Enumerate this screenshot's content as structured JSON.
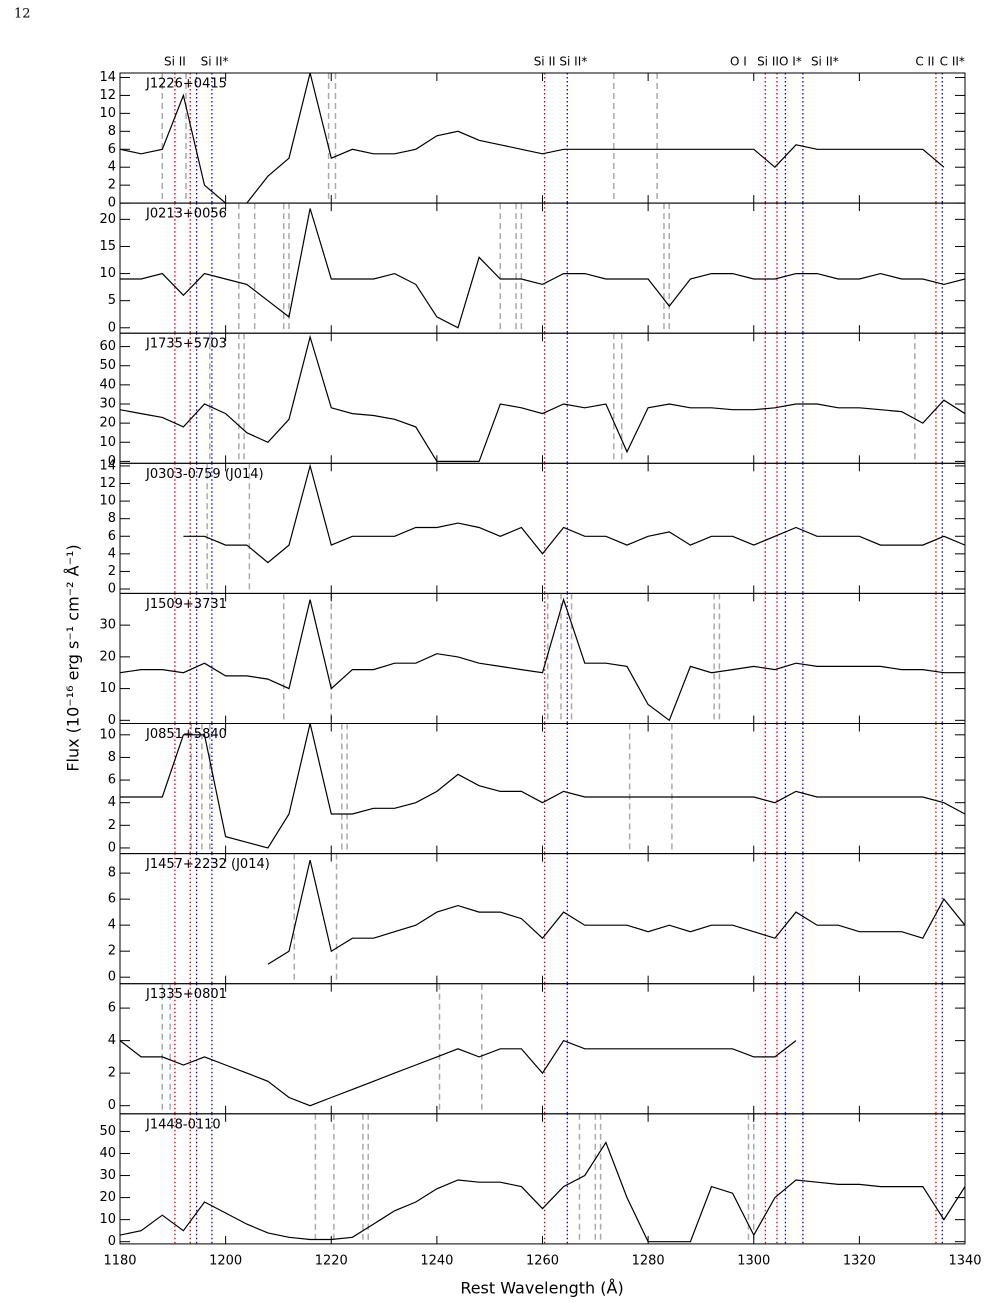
{
  "page_number": "12",
  "axes": {
    "xlim": [
      1180,
      1340
    ],
    "xticks": [
      1180,
      1200,
      1220,
      1240,
      1260,
      1280,
      1300,
      1320,
      1340
    ],
    "xlabel": "Rest Wavelength (Å)",
    "ylabel": "Flux (10⁻¹⁶ erg s⁻¹ cm⁻² Å⁻¹)"
  },
  "transitions": [
    {
      "label": "Si II",
      "wavelength": 1190.4,
      "color": "#e00000"
    },
    {
      "wavelength": 1193.3,
      "color": "#e00000"
    },
    {
      "label": "Si II*",
      "wavelength": 1194.5,
      "color": "#0000e0"
    },
    {
      "wavelength": 1197.4,
      "color": "#0000e0"
    },
    {
      "label": "Si II",
      "wavelength": 1260.4,
      "color": "#e00000"
    },
    {
      "label": "Si II*",
      "wavelength": 1264.7,
      "color": "#0000e0"
    },
    {
      "label": "O I",
      "wavelength": 1302.2,
      "color": "#e00000"
    },
    {
      "label": "Si II",
      "wavelength": 1304.4,
      "color": "#e00000"
    },
    {
      "label": "O I*",
      "wavelength": 1306.0,
      "color": "#0000e0"
    },
    {
      "label": "Si II*",
      "wavelength": 1309.3,
      "color": "#0000e0"
    },
    {
      "label": "C II",
      "wavelength": 1334.5,
      "color": "#e00000"
    },
    {
      "label": "C II*",
      "wavelength": 1335.7,
      "color": "#0000e0"
    }
  ],
  "chart_data": [
    {
      "type": "line",
      "title": "J1226+0415",
      "color": "#000000",
      "ylim": [
        0,
        14.5
      ],
      "yticks": [
        0,
        2,
        4,
        6,
        8,
        10,
        12,
        14
      ],
      "dashed": [
        1188,
        1192.5,
        1219.5,
        1220.8,
        1273.5,
        1281.7
      ],
      "x": [
        1180,
        1184,
        1188,
        1192,
        1196,
        1200,
        1204,
        1208,
        1212,
        1216,
        1220,
        1224,
        1228,
        1232,
        1236,
        1240,
        1244,
        1248,
        1252,
        1256,
        1260,
        1264,
        1268,
        1272,
        1276,
        1280,
        1284,
        1288,
        1292,
        1296,
        1300,
        1304,
        1308,
        1312,
        1316,
        1320,
        1324,
        1328,
        1332,
        1336,
        1340
      ],
      "values": [
        6,
        5.5,
        6,
        12,
        2,
        0,
        0,
        3,
        5,
        14.5,
        5,
        6,
        5.5,
        5.5,
        6,
        7.5,
        8,
        7,
        6.5,
        6,
        5.5,
        6,
        6,
        6,
        6,
        6,
        6,
        6,
        6,
        6,
        6,
        4,
        6.5,
        6,
        6,
        6,
        6,
        6,
        6,
        4,
        null
      ]
    },
    {
      "type": "line",
      "title": "J0213+0056",
      "color": "#000000",
      "ylim": [
        -1,
        23
      ],
      "yticks": [
        0,
        5,
        10,
        15,
        20
      ],
      "dashed": [
        1202.5,
        1205.5,
        1211,
        1212,
        1252,
        1255,
        1256,
        1283,
        1284
      ],
      "x": [
        1180,
        1184,
        1188,
        1192,
        1196,
        1200,
        1204,
        1208,
        1212,
        1216,
        1220,
        1224,
        1228,
        1232,
        1236,
        1240,
        1244,
        1248,
        1252,
        1256,
        1260,
        1264,
        1268,
        1272,
        1276,
        1280,
        1284,
        1288,
        1292,
        1296,
        1300,
        1304,
        1308,
        1312,
        1316,
        1320,
        1324,
        1328,
        1332,
        1336,
        1340
      ],
      "values": [
        9,
        9,
        10,
        6,
        10,
        9,
        8,
        5,
        2,
        22,
        9,
        9,
        9,
        10,
        8,
        2,
        0,
        13,
        9,
        9,
        8,
        10,
        10,
        9,
        9,
        9,
        4,
        9,
        10,
        10,
        9,
        9,
        10,
        10,
        9,
        9,
        10,
        9,
        9,
        8,
        9
      ]
    },
    {
      "type": "line",
      "title": "J1735+5703",
      "color": "#000000",
      "ylim": [
        -1,
        67
      ],
      "yticks": [
        0,
        10,
        20,
        30,
        40,
        50,
        60
      ],
      "dashed": [
        1197,
        1202.5,
        1203.5,
        1273.5,
        1275,
        1330.5
      ],
      "x": [
        1180,
        1184,
        1188,
        1192,
        1196,
        1200,
        1204,
        1208,
        1212,
        1216,
        1220,
        1224,
        1228,
        1232,
        1236,
        1240,
        1244,
        1248,
        1252,
        1256,
        1260,
        1264,
        1268,
        1272,
        1276,
        1280,
        1284,
        1288,
        1292,
        1296,
        1300,
        1304,
        1308,
        1312,
        1316,
        1320,
        1324,
        1328,
        1332,
        1336,
        1340
      ],
      "values": [
        27,
        25,
        23,
        18,
        30,
        25,
        15,
        10,
        22,
        65,
        28,
        25,
        24,
        22,
        18,
        0,
        0,
        0,
        30,
        28,
        25,
        30,
        28,
        30,
        5,
        28,
        30,
        28,
        28,
        27,
        27,
        28,
        30,
        30,
        28,
        28,
        27,
        26,
        20,
        32,
        25
      ]
    },
    {
      "type": "line",
      "title": "J0303-0759 (J014)",
      "color": "#000000",
      "ylim": [
        -0.5,
        14.3
      ],
      "yticks": [
        0,
        2,
        4,
        6,
        8,
        10,
        12,
        14
      ],
      "dashed": [
        1196.5,
        1204.5
      ],
      "x": [
        1180,
        1184,
        1188,
        1192,
        1196,
        1200,
        1204,
        1208,
        1212,
        1216,
        1220,
        1224,
        1228,
        1232,
        1236,
        1240,
        1244,
        1248,
        1252,
        1256,
        1260,
        1264,
        1268,
        1272,
        1276,
        1280,
        1284,
        1288,
        1292,
        1296,
        1300,
        1304,
        1308,
        1312,
        1316,
        1320,
        1324,
        1328,
        1332,
        1336,
        1340
      ],
      "values": [
        null,
        null,
        null,
        6,
        6,
        5,
        5,
        3,
        5,
        14,
        5,
        6,
        6,
        6,
        7,
        7,
        7.5,
        7,
        6,
        7,
        4,
        7,
        6,
        6,
        5,
        6,
        6.5,
        5,
        6,
        6,
        5,
        6,
        7,
        6,
        6,
        6,
        5,
        5,
        5,
        6,
        5
      ]
    },
    {
      "type": "line",
      "title": "J1509+3731",
      "color": "#000000",
      "ylim": [
        -1,
        40
      ],
      "yticks": [
        0,
        10,
        20,
        30
      ],
      "dashed": [
        1211,
        1220,
        1261,
        1263.5,
        1265.5,
        1292.5,
        1293.5
      ],
      "x": [
        1180,
        1184,
        1188,
        1192,
        1196,
        1200,
        1204,
        1208,
        1212,
        1216,
        1220,
        1224,
        1228,
        1232,
        1236,
        1240,
        1244,
        1248,
        1252,
        1256,
        1260,
        1264,
        1268,
        1272,
        1276,
        1280,
        1284,
        1288,
        1292,
        1296,
        1300,
        1304,
        1308,
        1312,
        1316,
        1320,
        1324,
        1328,
        1332,
        1336,
        1340
      ],
      "values": [
        15,
        16,
        16,
        15,
        18,
        14,
        14,
        13,
        10,
        38,
        10,
        16,
        16,
        18,
        18,
        21,
        20,
        18,
        17,
        16,
        15,
        38,
        18,
        18,
        17,
        5,
        0,
        17,
        15,
        16,
        17,
        16,
        18,
        17,
        17,
        17,
        17,
        16,
        16,
        15,
        15
      ]
    },
    {
      "type": "line",
      "title": "J0851+5840",
      "color": "#000000",
      "ylim": [
        -0.5,
        11
      ],
      "yticks": [
        0,
        2,
        4,
        6,
        8,
        10
      ],
      "dashed": [
        1193.5,
        1195.5,
        1197,
        1222,
        1223,
        1276.5,
        1284.5
      ],
      "x": [
        1180,
        1184,
        1188,
        1192,
        1196,
        1200,
        1204,
        1208,
        1212,
        1216,
        1220,
        1224,
        1228,
        1232,
        1236,
        1240,
        1244,
        1248,
        1252,
        1256,
        1260,
        1264,
        1268,
        1272,
        1276,
        1280,
        1284,
        1288,
        1292,
        1296,
        1300,
        1304,
        1308,
        1312,
        1316,
        1320,
        1324,
        1328,
        1332,
        1336,
        1340
      ],
      "values": [
        4.5,
        4.5,
        4.5,
        10,
        10,
        1,
        0.5,
        0,
        3,
        11,
        3,
        3,
        3.5,
        3.5,
        4,
        5,
        6.5,
        5.5,
        5,
        5,
        4,
        5,
        4.5,
        4.5,
        4.5,
        4.5,
        4.5,
        4.5,
        4.5,
        4.5,
        4.5,
        4,
        5,
        4.5,
        4.5,
        4.5,
        4.5,
        4.5,
        4.5,
        4,
        3
      ]
    },
    {
      "type": "line",
      "title": "J1457+2232 (J014)",
      "color": "#000000",
      "ylim": [
        -0.5,
        9.5
      ],
      "yticks": [
        0,
        2,
        4,
        6,
        8
      ],
      "dashed": [
        1213,
        1221
      ],
      "x": [
        1180,
        1184,
        1188,
        1192,
        1196,
        1200,
        1204,
        1208,
        1212,
        1216,
        1220,
        1224,
        1228,
        1232,
        1236,
        1240,
        1244,
        1248,
        1252,
        1256,
        1260,
        1264,
        1268,
        1272,
        1276,
        1280,
        1284,
        1288,
        1292,
        1296,
        1300,
        1304,
        1308,
        1312,
        1316,
        1320,
        1324,
        1328,
        1332,
        1336,
        1340
      ],
      "values": [
        null,
        null,
        null,
        null,
        null,
        null,
        null,
        1,
        2,
        9,
        2,
        3,
        3,
        3.5,
        4,
        5,
        5.5,
        5,
        5,
        4.5,
        3,
        5,
        4,
        4,
        4,
        3.5,
        4,
        3.5,
        4,
        4,
        3.5,
        3,
        5,
        4,
        4,
        3.5,
        3.5,
        3.5,
        3,
        6,
        4
      ]
    },
    {
      "type": "line",
      "title": "J1335+0801",
      "color": "#000000",
      "ylim": [
        -0.5,
        7.5
      ],
      "yticks": [
        0,
        2,
        4,
        6
      ],
      "dashed": [
        1188,
        1189.5,
        1240.5,
        1248.5
      ],
      "x": [
        1180,
        1184,
        1188,
        1192,
        1196,
        1200,
        1204,
        1208,
        1212,
        1216,
        1220,
        1224,
        1228,
        1232,
        1236,
        1240,
        1244,
        1248,
        1252,
        1256,
        1260,
        1264,
        1268,
        1272,
        1276,
        1280,
        1284,
        1288,
        1292,
        1296,
        1300,
        1304,
        1308,
        1312,
        1316,
        1320,
        1324,
        1328,
        1332,
        1336,
        1340
      ],
      "values": [
        4,
        3,
        3,
        2.5,
        3,
        2.5,
        2,
        1.5,
        0.5,
        0,
        0.5,
        1,
        1.5,
        2,
        2.5,
        3,
        3.5,
        3,
        3.5,
        3.5,
        2,
        4,
        3.5,
        3.5,
        3.5,
        3.5,
        3.5,
        3.5,
        3.5,
        3.5,
        3,
        3,
        4,
        null,
        null,
        null,
        null,
        null,
        null,
        null,
        null
      ]
    },
    {
      "type": "line",
      "title": "J1448-0110",
      "color": "#000000",
      "ylim": [
        -1,
        58
      ],
      "yticks": [
        0,
        10,
        20,
        30,
        40,
        50
      ],
      "dashed": [
        1217,
        1220.5,
        1226,
        1227,
        1267,
        1270,
        1271,
        1299,
        1300
      ],
      "x": [
        1180,
        1184,
        1188,
        1192,
        1196,
        1200,
        1204,
        1208,
        1212,
        1216,
        1220,
        1224,
        1228,
        1232,
        1236,
        1240,
        1244,
        1248,
        1252,
        1256,
        1260,
        1264,
        1268,
        1272,
        1276,
        1280,
        1284,
        1288,
        1292,
        1296,
        1300,
        1304,
        1308,
        1312,
        1316,
        1320,
        1324,
        1328,
        1332,
        1336,
        1340
      ],
      "values": [
        3,
        5,
        12,
        5,
        18,
        13,
        8,
        4,
        2,
        1,
        1,
        2,
        8,
        14,
        18,
        24,
        28,
        27,
        27,
        25,
        15,
        25,
        30,
        45,
        20,
        0,
        0,
        0,
        25,
        22,
        3,
        20,
        28,
        27,
        26,
        26,
        25,
        25,
        25,
        10,
        25
      ]
    }
  ]
}
